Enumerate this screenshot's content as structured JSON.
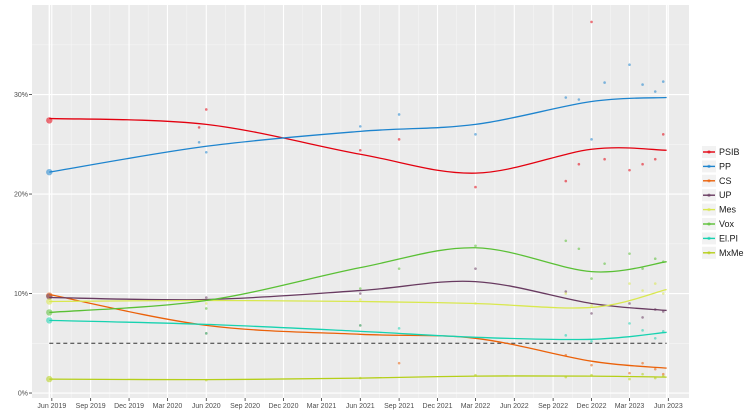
{
  "chart_data": {
    "type": "line",
    "title": "",
    "xlabel": "",
    "ylabel": "",
    "x_range": [
      "2019-04-15",
      "2023-07-20"
    ],
    "ylim": [
      -0.5,
      39.0
    ],
    "grid": true,
    "legend_position": "right",
    "x_ticks": [
      {
        "date": "2019-06-01",
        "label": "Jun 2019"
      },
      {
        "date": "2019-09-01",
        "label": "Sep 2019"
      },
      {
        "date": "2019-12-01",
        "label": "Dec 2019"
      },
      {
        "date": "2020-03-01",
        "label": "Mar 2020"
      },
      {
        "date": "2020-06-01",
        "label": "Jun 2020"
      },
      {
        "date": "2020-09-01",
        "label": "Sep 2020"
      },
      {
        "date": "2020-12-01",
        "label": "Dec 2020"
      },
      {
        "date": "2021-03-01",
        "label": "Mar 2021"
      },
      {
        "date": "2021-06-01",
        "label": "Jun 2021"
      },
      {
        "date": "2021-09-01",
        "label": "Sep 2021"
      },
      {
        "date": "2021-12-01",
        "label": "Dec 2021"
      },
      {
        "date": "2022-03-01",
        "label": "Mar 2022"
      },
      {
        "date": "2022-06-01",
        "label": "Jun 2022"
      },
      {
        "date": "2022-09-01",
        "label": "Sep 2022"
      },
      {
        "date": "2022-12-01",
        "label": "Dec 2022"
      },
      {
        "date": "2023-03-01",
        "label": "Mar 2023"
      },
      {
        "date": "2023-06-01",
        "label": "Jun 2023"
      }
    ],
    "y_ticks": [
      {
        "value": 0,
        "label": "0%"
      },
      {
        "value": 10,
        "label": "10%"
      },
      {
        "value": 20,
        "label": "20%"
      },
      {
        "value": 30,
        "label": "30%"
      }
    ],
    "vertical_markers": [
      "2019-05-26",
      "2023-05-28"
    ],
    "threshold": {
      "value": 5,
      "style": "dashed"
    },
    "series": [
      {
        "name": "PSIB",
        "color": "#e3000f",
        "trend": [
          [
            "2019-05-26",
            27.6
          ],
          [
            "2020-06-01",
            27.0
          ],
          [
            "2021-06-01",
            24.0
          ],
          [
            "2022-03-01",
            22.1
          ],
          [
            "2022-12-01",
            24.5
          ],
          [
            "2023-05-28",
            24.4
          ]
        ],
        "points": [
          [
            "2019-05-26",
            27.4
          ],
          [
            "2020-05-15",
            26.7
          ],
          [
            "2020-06-01",
            28.5
          ],
          [
            "2021-06-01",
            24.4
          ],
          [
            "2021-09-01",
            25.5
          ],
          [
            "2022-03-01",
            20.7
          ],
          [
            "2022-10-01",
            21.3
          ],
          [
            "2022-11-01",
            23.0
          ],
          [
            "2022-12-01",
            37.3
          ],
          [
            "2023-01-01",
            23.5
          ],
          [
            "2023-03-01",
            22.4
          ],
          [
            "2023-04-01",
            23.0
          ],
          [
            "2023-05-01",
            23.5
          ],
          [
            "2023-05-20",
            26.0
          ]
        ]
      },
      {
        "name": "PP",
        "color": "#1d84ce",
        "trend": [
          [
            "2019-05-26",
            22.2
          ],
          [
            "2020-06-01",
            24.8
          ],
          [
            "2021-06-01",
            26.3
          ],
          [
            "2022-03-01",
            27.0
          ],
          [
            "2022-12-01",
            29.3
          ],
          [
            "2023-05-28",
            29.7
          ]
        ],
        "points": [
          [
            "2019-05-26",
            22.2
          ],
          [
            "2020-05-15",
            25.2
          ],
          [
            "2020-06-01",
            24.2
          ],
          [
            "2021-06-01",
            26.8
          ],
          [
            "2021-09-01",
            28.0
          ],
          [
            "2022-03-01",
            26.0
          ],
          [
            "2022-10-01",
            29.7
          ],
          [
            "2022-11-01",
            29.5
          ],
          [
            "2022-12-01",
            25.5
          ],
          [
            "2023-01-01",
            31.2
          ],
          [
            "2023-03-01",
            33.0
          ],
          [
            "2023-04-01",
            31.0
          ],
          [
            "2023-05-01",
            30.3
          ],
          [
            "2023-05-20",
            31.3
          ]
        ]
      },
      {
        "name": "CS",
        "color": "#eb6109",
        "trend": [
          [
            "2019-05-26",
            9.9
          ],
          [
            "2020-06-01",
            6.8
          ],
          [
            "2021-06-01",
            5.9
          ],
          [
            "2022-03-01",
            5.5
          ],
          [
            "2022-12-01",
            3.2
          ],
          [
            "2023-05-28",
            2.5
          ]
        ],
        "points": [
          [
            "2019-05-26",
            9.8
          ],
          [
            "2020-06-01",
            6.0
          ],
          [
            "2021-06-01",
            6.8
          ],
          [
            "2021-09-01",
            3.0
          ],
          [
            "2022-10-01",
            3.8
          ],
          [
            "2022-12-01",
            2.8
          ],
          [
            "2023-03-01",
            2.0
          ],
          [
            "2023-04-01",
            3.0
          ],
          [
            "2023-05-01",
            2.4
          ],
          [
            "2023-05-20",
            1.9
          ]
        ]
      },
      {
        "name": "UP",
        "color": "#683a60",
        "trend": [
          [
            "2019-05-26",
            9.6
          ],
          [
            "2020-06-01",
            9.4
          ],
          [
            "2021-06-01",
            10.3
          ],
          [
            "2022-03-01",
            11.2
          ],
          [
            "2022-12-01",
            9.0
          ],
          [
            "2023-05-28",
            8.3
          ]
        ],
        "points": [
          [
            "2019-05-26",
            9.7
          ],
          [
            "2020-06-01",
            9.6
          ],
          [
            "2021-06-01",
            10.0
          ],
          [
            "2022-03-01",
            12.5
          ],
          [
            "2022-10-01",
            10.2
          ],
          [
            "2022-12-01",
            8.0
          ],
          [
            "2023-03-01",
            9.0
          ],
          [
            "2023-04-01",
            7.6
          ],
          [
            "2023-05-01",
            8.4
          ],
          [
            "2023-05-20",
            8.2
          ]
        ]
      },
      {
        "name": "Mes",
        "color": "#d9e84f",
        "trend": [
          [
            "2019-05-26",
            9.2
          ],
          [
            "2020-06-01",
            9.3
          ],
          [
            "2021-06-01",
            9.2
          ],
          [
            "2022-03-01",
            9.0
          ],
          [
            "2022-12-01",
            8.6
          ],
          [
            "2023-05-28",
            10.4
          ]
        ],
        "points": [
          [
            "2019-05-26",
            9.2
          ],
          [
            "2020-06-01",
            9.0
          ],
          [
            "2021-06-01",
            9.4
          ],
          [
            "2022-03-01",
            9.0
          ],
          [
            "2022-10-01",
            10.0
          ],
          [
            "2022-12-01",
            8.8
          ],
          [
            "2023-03-01",
            11.0
          ],
          [
            "2023-04-01",
            10.3
          ],
          [
            "2023-05-01",
            11.0
          ],
          [
            "2023-05-20",
            10.0
          ]
        ]
      },
      {
        "name": "Vox",
        "color": "#5ac035",
        "trend": [
          [
            "2019-05-26",
            8.1
          ],
          [
            "2020-06-01",
            9.3
          ],
          [
            "2021-06-01",
            12.6
          ],
          [
            "2022-03-01",
            14.6
          ],
          [
            "2022-12-01",
            12.2
          ],
          [
            "2023-05-28",
            13.2
          ]
        ],
        "points": [
          [
            "2019-05-26",
            8.1
          ],
          [
            "2020-06-01",
            8.5
          ],
          [
            "2021-06-01",
            10.5
          ],
          [
            "2021-09-01",
            12.5
          ],
          [
            "2022-03-01",
            14.8
          ],
          [
            "2022-10-01",
            15.3
          ],
          [
            "2022-11-01",
            14.5
          ],
          [
            "2022-12-01",
            11.5
          ],
          [
            "2023-01-01",
            13.0
          ],
          [
            "2023-03-01",
            14.0
          ],
          [
            "2023-04-01",
            12.5
          ],
          [
            "2023-05-01",
            13.5
          ],
          [
            "2023-05-20",
            13.2
          ]
        ]
      },
      {
        "name": "El.PI",
        "color": "#17d2b0",
        "trend": [
          [
            "2019-05-26",
            7.3
          ],
          [
            "2020-06-01",
            6.9
          ],
          [
            "2021-06-01",
            6.2
          ],
          [
            "2022-03-01",
            5.6
          ],
          [
            "2022-12-01",
            5.4
          ],
          [
            "2023-05-28",
            6.1
          ]
        ],
        "points": [
          [
            "2019-05-26",
            7.3
          ],
          [
            "2020-06-01",
            6.0
          ],
          [
            "2021-06-01",
            6.8
          ],
          [
            "2021-09-01",
            6.5
          ],
          [
            "2022-10-01",
            5.8
          ],
          [
            "2022-12-01",
            5.2
          ],
          [
            "2023-03-01",
            7.0
          ],
          [
            "2023-04-01",
            6.3
          ],
          [
            "2023-05-01",
            5.5
          ],
          [
            "2023-05-20",
            6.2
          ]
        ]
      },
      {
        "name": "MxMe",
        "color": "#b5cf18",
        "trend": [
          [
            "2019-05-26",
            1.4
          ],
          [
            "2020-06-01",
            1.35
          ],
          [
            "2021-06-01",
            1.5
          ],
          [
            "2022-03-01",
            1.7
          ],
          [
            "2022-12-01",
            1.7
          ],
          [
            "2023-05-28",
            1.6
          ]
        ],
        "points": [
          [
            "2019-05-26",
            1.4
          ],
          [
            "2020-06-01",
            1.3
          ],
          [
            "2021-06-01",
            1.5
          ],
          [
            "2022-03-01",
            1.8
          ],
          [
            "2022-10-01",
            1.6
          ],
          [
            "2022-12-01",
            1.8
          ],
          [
            "2023-03-01",
            1.4
          ],
          [
            "2023-04-01",
            1.9
          ],
          [
            "2023-05-01",
            1.5
          ],
          [
            "2023-05-20",
            1.7
          ]
        ]
      }
    ]
  }
}
